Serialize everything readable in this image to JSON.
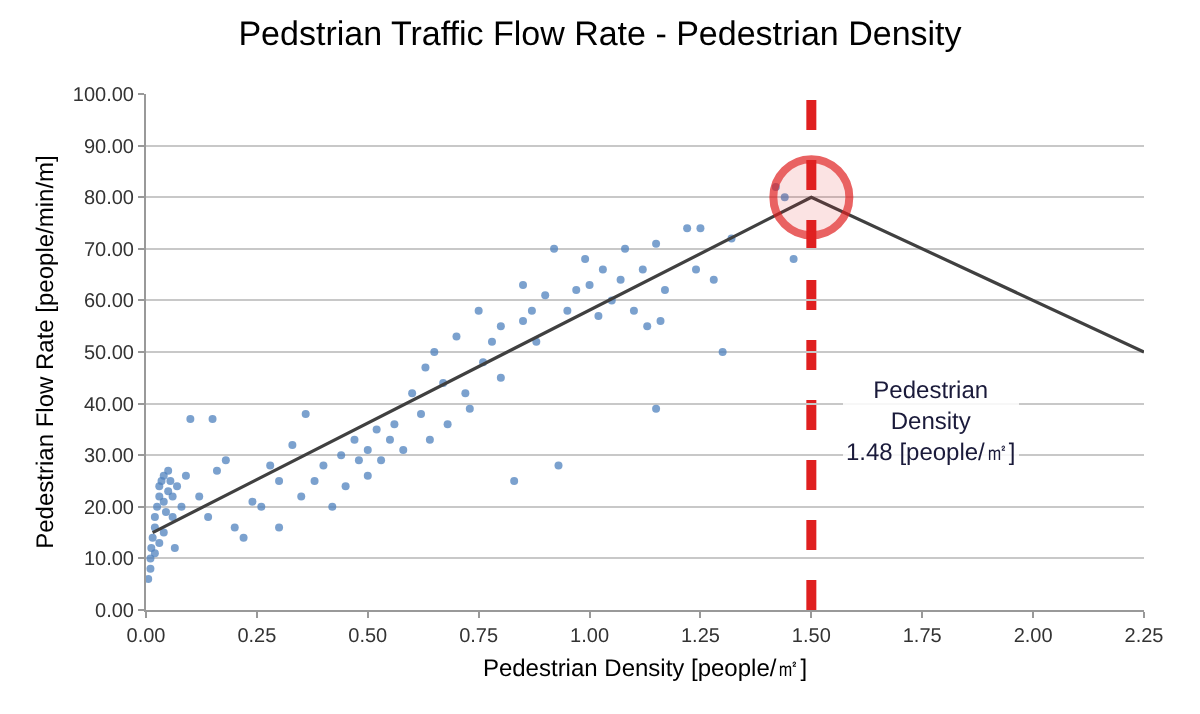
{
  "chart_data": {
    "type": "scatter",
    "title": "Pedstrian Traffic Flow Rate - Pedestrian Density",
    "xlabel": "Pedestrian Density [people/㎡]",
    "ylabel": "Pedestrian Flow Rate [people/min/m]",
    "xlim": [
      0,
      2.25
    ],
    "xticks": [
      {
        "value": 0,
        "label": "0.00"
      },
      {
        "value": 0.25,
        "label": "0.25"
      },
      {
        "value": 0.5,
        "label": "0.50"
      },
      {
        "value": 0.75,
        "label": "0.75"
      },
      {
        "value": 1,
        "label": "1.00"
      },
      {
        "value": 1.25,
        "label": "1.25"
      },
      {
        "value": 1.5,
        "label": "1.50"
      },
      {
        "value": 1.75,
        "label": "1.75"
      },
      {
        "value": 2,
        "label": "2.00"
      },
      {
        "value": 2.25,
        "label": "2.25"
      }
    ],
    "ylim": [
      0,
      100
    ],
    "yticks": [
      {
        "value": 0,
        "label": "0.00"
      },
      {
        "value": 10,
        "label": "10.00"
      },
      {
        "value": 20,
        "label": "20.00"
      },
      {
        "value": 30,
        "label": "30.00"
      },
      {
        "value": 40,
        "label": "40.00"
      },
      {
        "value": 50,
        "label": "50.00"
      },
      {
        "value": 60,
        "label": "60.00"
      },
      {
        "value": 70,
        "label": "70.00"
      },
      {
        "value": 80,
        "label": "80.00"
      },
      {
        "value": 90,
        "label": "90.00"
      },
      {
        "value": 100,
        "label": "100.00"
      }
    ],
    "grid": "y",
    "series": [
      {
        "color": "#4f81bd",
        "marker": "circle",
        "x": [
          0.005,
          0.01,
          0.01,
          0.012,
          0.015,
          0.02,
          0.02,
          0.025,
          0.03,
          0.03,
          0.035,
          0.04,
          0.04,
          0.045,
          0.05,
          0.05,
          0.055,
          0.06,
          0.06,
          0.07,
          0.03,
          0.02,
          0.04,
          0.065,
          0.08,
          0.09,
          0.1,
          0.12,
          0.14,
          0.15,
          0.16,
          0.18,
          0.2,
          0.22,
          0.24,
          0.26,
          0.28,
          0.3,
          0.3,
          0.33,
          0.35,
          0.36,
          0.38,
          0.4,
          0.42,
          0.44,
          0.45,
          0.47,
          0.48,
          0.5,
          0.5,
          0.52,
          0.53,
          0.55,
          0.56,
          0.58,
          0.6,
          0.62,
          0.63,
          0.64,
          0.65,
          0.67,
          0.68,
          0.7,
          0.72,
          0.73,
          0.75,
          0.76,
          0.78,
          0.8,
          0.8,
          0.83,
          0.85,
          0.85,
          0.87,
          0.88,
          0.9,
          0.92,
          0.93,
          0.95,
          0.97,
          0.99,
          1.0,
          1.02,
          1.03,
          1.05,
          1.07,
          1.08,
          1.1,
          1.12,
          1.13,
          1.15,
          1.16,
          1.17,
          1.15,
          1.22,
          1.24,
          1.25,
          1.28,
          1.3,
          1.32,
          1.42,
          1.44,
          1.46
        ],
        "values": [
          6,
          8,
          10,
          12,
          14,
          16,
          18,
          20,
          22,
          24,
          25,
          26,
          21,
          19,
          23,
          27,
          25,
          22,
          18,
          24,
          13,
          11,
          15,
          12,
          20,
          26,
          37,
          22,
          18,
          37,
          27,
          29,
          16,
          14,
          21,
          20,
          28,
          16,
          25,
          32,
          22,
          38,
          25,
          28,
          20,
          30,
          24,
          33,
          29,
          31,
          26,
          35,
          29,
          33,
          36,
          31,
          42,
          38,
          47,
          33,
          50,
          44,
          36,
          53,
          42,
          39,
          58,
          48,
          52,
          45,
          55,
          25,
          63,
          56,
          58,
          52,
          61,
          70,
          28,
          58,
          62,
          68,
          63,
          57,
          66,
          60,
          64,
          70,
          58,
          66,
          55,
          71,
          56,
          62,
          39,
          74,
          66,
          74,
          64,
          50,
          72,
          82,
          80,
          68
        ]
      },
      {
        "type": "line",
        "color": "#404040",
        "marker": "none",
        "line_style": "solid",
        "x": [
          0.015,
          1.5,
          2.25
        ],
        "values": [
          15,
          80,
          50
        ]
      },
      {
        "type": "bubble",
        "color": "#e02020",
        "x": [
          1.5
        ],
        "values": [
          80
        ],
        "sizes": [
          1
        ]
      }
    ],
    "ref_lines": [
      {
        "axis": "x",
        "value": 1.5,
        "color": "#e02020",
        "line_style": "dashed"
      }
    ],
    "annotations": [
      "Pedestrian\nDensity\n1.48 [people/㎡]"
    ]
  }
}
